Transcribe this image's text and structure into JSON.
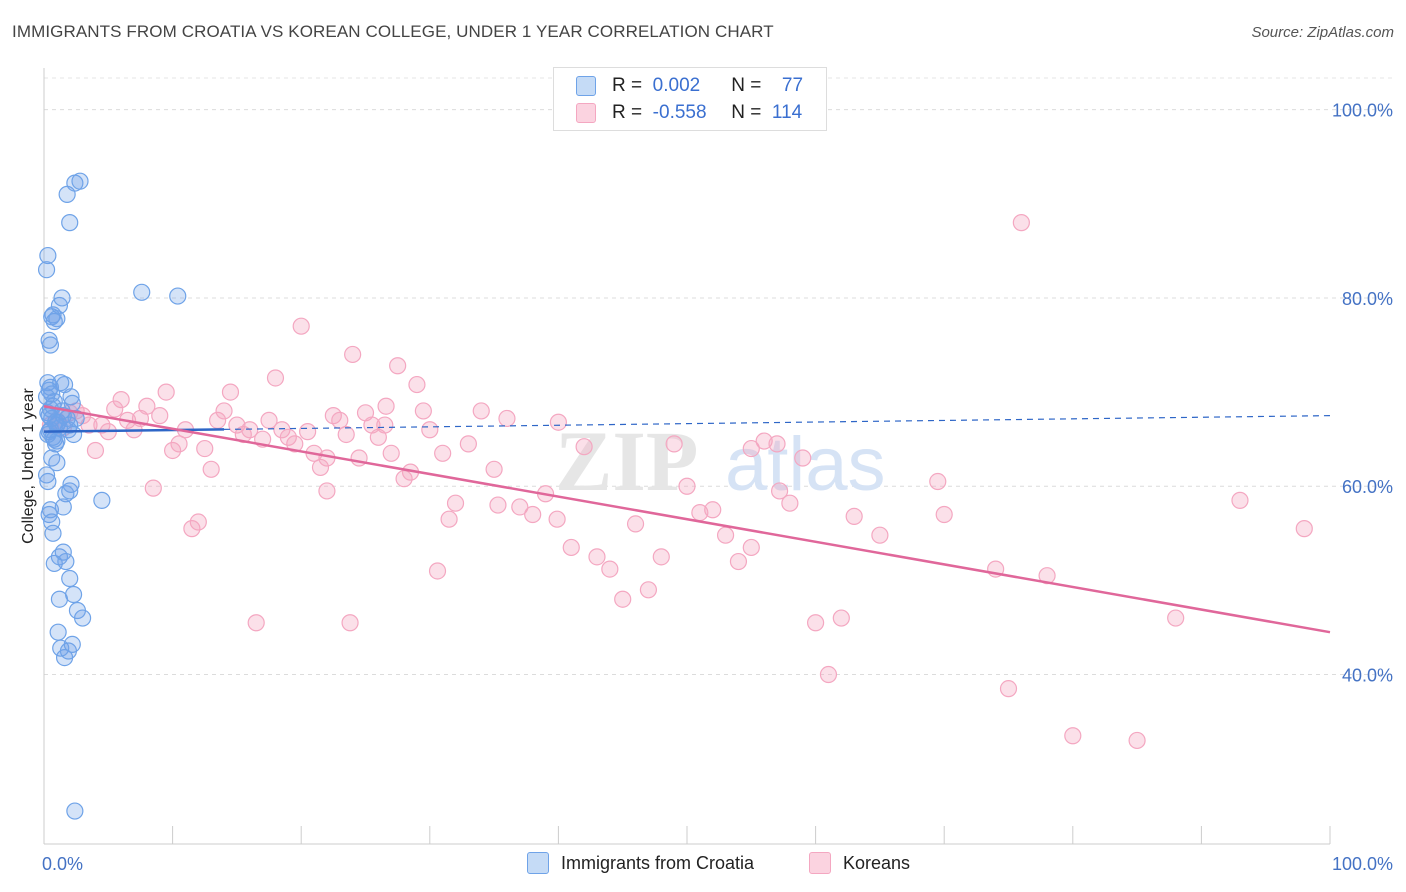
{
  "title": "IMMIGRANTS FROM CROATIA VS KOREAN COLLEGE, UNDER 1 YEAR CORRELATION CHART",
  "source": "Source: ZipAtlas.com",
  "legend": {
    "rows": [
      {
        "r_label": "R =",
        "r_value": "0.002",
        "n_label": "N =",
        "n_value": "77"
      },
      {
        "r_label": "R =",
        "r_value": "-0.558",
        "n_label": "N =",
        "n_value": "114"
      }
    ]
  },
  "chart_data": {
    "type": "scatter",
    "title": "IMMIGRANTS FROM CROATIA VS KOREAN COLLEGE, UNDER 1 YEAR CORRELATION CHART",
    "xlabel": "",
    "ylabel": "College, Under 1 year",
    "xlim": [
      0,
      100
    ],
    "ylim": [
      22,
      104
    ],
    "x_tick_labels": [
      "0.0%",
      "100.0%"
    ],
    "y_ticks": [
      40,
      60,
      80,
      100
    ],
    "y_tick_labels": [
      "40.0%",
      "60.0%",
      "80.0%",
      "100.0%"
    ],
    "grid": true,
    "legend_placement": "bottom",
    "colors": {
      "croatia": "#6fa3e8",
      "croatia_line": "#2e66c7",
      "koreans": "#f4a7c1",
      "koreans_line": "#e0679a"
    },
    "series": [
      {
        "name": "Immigrants from Croatia",
        "trend": {
          "x": [
            0,
            100
          ],
          "y": [
            65.8,
            67.5
          ],
          "solid_until_x": 14
        },
        "x": [
          0.3,
          0.5,
          0.4,
          0.6,
          0.2,
          0.8,
          0.7,
          0.5,
          0.3,
          0.4,
          0.6,
          0.9,
          1.0,
          1.2,
          0.5,
          0.4,
          0.3,
          0.7,
          0.8,
          1.1,
          1.5,
          1.4,
          1.8,
          2.0,
          1.9,
          2.1,
          1.6,
          1.3,
          2.2,
          2.5,
          2.3,
          1.0,
          0.9,
          0.6,
          0.2,
          0.3,
          0.5,
          0.4,
          0.6,
          0.7,
          0.8,
          1.2,
          1.5,
          1.7,
          2.0,
          2.3,
          2.6,
          3.0,
          1.1,
          1.3,
          1.6,
          1.9,
          2.2,
          2.4,
          0.2,
          0.3,
          0.4,
          0.5,
          0.6,
          0.7,
          0.8,
          1.0,
          1.2,
          1.4,
          1.8,
          2.0,
          2.4,
          2.8,
          7.6,
          10.4,
          4.5,
          1.7,
          2.0,
          1.5,
          1.2,
          2.1,
          1.0
        ],
        "y": [
          71.0,
          70.5,
          70.2,
          69.8,
          69.5,
          69.0,
          68.5,
          68.2,
          67.8,
          67.5,
          67.2,
          66.8,
          66.5,
          66.2,
          66.0,
          65.8,
          65.5,
          65.2,
          65.0,
          66.8,
          67.5,
          68.0,
          67.2,
          66.5,
          66.0,
          69.5,
          70.8,
          71.0,
          68.8,
          67.2,
          65.5,
          64.8,
          64.5,
          63.0,
          61.2,
          60.5,
          57.5,
          57.0,
          56.2,
          55.0,
          51.8,
          52.5,
          53.0,
          52.0,
          50.2,
          48.5,
          46.8,
          46.0,
          44.5,
          42.8,
          41.8,
          42.5,
          43.2,
          25.5,
          83.0,
          84.5,
          75.5,
          75.0,
          78.0,
          78.2,
          77.5,
          77.8,
          79.2,
          80.0,
          91.0,
          88.0,
          92.2,
          92.4,
          80.6,
          80.2,
          58.5,
          59.2,
          59.5,
          57.8,
          48.0,
          60.2,
          62.5
        ],
        "y_note": "Values read from plot at data units"
      },
      {
        "name": "Koreans",
        "trend": {
          "x": [
            0,
            100
          ],
          "y": [
            68.5,
            44.5
          ]
        },
        "x": [
          0.5,
          1.0,
          1.5,
          2.0,
          2.5,
          3.0,
          3.5,
          4.0,
          4.5,
          5.0,
          5.5,
          6.0,
          6.5,
          7.0,
          7.5,
          8.0,
          8.5,
          9.0,
          9.5,
          10.0,
          10.5,
          11.0,
          11.5,
          12.0,
          12.5,
          13.0,
          13.5,
          14.0,
          14.5,
          15.0,
          15.5,
          16.0,
          16.5,
          17.0,
          17.5,
          18.0,
          18.5,
          19.0,
          19.5,
          20.0,
          20.5,
          21.0,
          21.5,
          22.0,
          22.5,
          23.0,
          23.5,
          24.0,
          24.5,
          25.0,
          25.5,
          26.0,
          26.5,
          27.0,
          27.5,
          28.0,
          28.5,
          29.0,
          29.5,
          30.0,
          31.0,
          32.0,
          33.0,
          34.0,
          35.0,
          36.0,
          37.0,
          38.0,
          39.0,
          40.0,
          41.0,
          42.0,
          43.0,
          44.0,
          45.0,
          46.0,
          47.0,
          48.0,
          49.0,
          50.0,
          51.0,
          52.0,
          53.0,
          54.0,
          55.0,
          56.0,
          57.0,
          58.0,
          59.0,
          60.0,
          61.0,
          62.0,
          63.0,
          65.0,
          70.0,
          74.0,
          75.0,
          76.0,
          78.0,
          80.0,
          85.0,
          88.0,
          93.0,
          98.0,
          22.0,
          23.8,
          26.6,
          30.6,
          31.5,
          35.3,
          39.9,
          55.0,
          57.2,
          69.5
        ],
        "y": [
          66.5,
          67.0,
          66.2,
          67.8,
          68.0,
          67.5,
          66.5,
          63.8,
          66.5,
          65.8,
          68.2,
          69.2,
          67.0,
          66.0,
          67.2,
          68.5,
          59.8,
          67.5,
          70.0,
          63.8,
          64.5,
          66.0,
          55.5,
          56.2,
          64.0,
          61.8,
          67.0,
          68.0,
          70.0,
          66.5,
          65.5,
          66.0,
          45.5,
          65.0,
          67.0,
          71.5,
          66.0,
          65.2,
          64.5,
          77.0,
          65.8,
          63.5,
          62.0,
          63.0,
          67.5,
          67.0,
          65.5,
          74.0,
          63.0,
          67.8,
          66.5,
          65.2,
          66.5,
          63.5,
          72.8,
          60.8,
          61.5,
          70.8,
          68.0,
          66.0,
          63.5,
          58.2,
          64.5,
          68.0,
          61.8,
          67.2,
          57.8,
          57.0,
          59.2,
          66.8,
          53.5,
          64.2,
          52.5,
          51.2,
          48.0,
          56.0,
          49.0,
          52.5,
          64.5,
          60.0,
          57.2,
          57.5,
          54.8,
          52.0,
          64.0,
          64.8,
          64.5,
          58.2,
          63.0,
          45.5,
          40.0,
          46.0,
          56.8,
          54.8,
          57.0,
          51.2,
          38.5,
          88.0,
          50.5,
          33.5,
          33.0,
          46.0,
          58.5,
          55.5,
          59.5,
          45.5,
          68.5,
          51.0,
          56.5,
          58.0,
          56.5,
          53.5,
          59.5,
          60.5
        ]
      }
    ]
  },
  "bottom_legend": [
    {
      "label": "Immigrants from Croatia"
    },
    {
      "label": "Koreans"
    }
  ],
  "watermark": {
    "zip": "ZIP",
    "atlas": "atlas"
  }
}
